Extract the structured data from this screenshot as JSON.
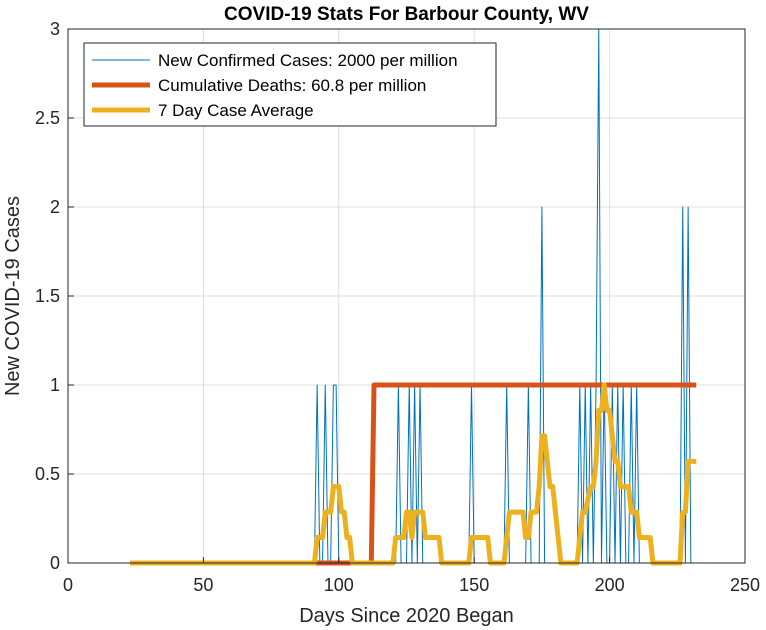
{
  "chart_data": {
    "type": "line",
    "title": "COVID-19 Stats For Barbour County, WV",
    "xlabel": "Days Since 2020 Began",
    "ylabel": "New COVID-19 Cases",
    "xlim": [
      0,
      250
    ],
    "ylim": [
      0,
      3
    ],
    "xticks": [
      0,
      50,
      100,
      150,
      200,
      250
    ],
    "yticks": [
      0,
      0.5,
      1,
      1.5,
      2,
      2.5,
      3
    ],
    "xtick_labels": [
      "0",
      "50",
      "100",
      "150",
      "200",
      "250"
    ],
    "ytick_labels": [
      "0",
      "0.5",
      "1",
      "1.5",
      "2",
      "2.5",
      "3"
    ],
    "grid": true,
    "legend_position": "top-left",
    "series": [
      {
        "name": "New Confirmed Cases: 2000 per million",
        "color": "#0072BD",
        "width": "thin",
        "x": [
          23,
          91,
          92,
          93,
          94,
          95,
          96,
          97,
          98,
          99,
          100,
          101,
          120,
          121,
          122,
          123,
          125,
          126,
          127,
          128,
          129,
          130,
          131,
          148,
          149,
          150,
          151,
          161,
          162,
          163,
          164,
          169,
          170,
          171,
          174,
          175,
          176,
          177,
          188,
          189,
          190,
          191,
          192,
          193,
          194,
          195,
          196,
          197,
          198,
          199,
          200,
          201,
          202,
          203,
          204,
          205,
          206,
          207,
          208,
          209,
          210,
          211,
          226,
          227,
          228,
          229,
          230,
          232
        ],
        "y": [
          0,
          0,
          1,
          0,
          0,
          1,
          0,
          0,
          1,
          1,
          0,
          0,
          0,
          0,
          1,
          0,
          0,
          1,
          0,
          1,
          0,
          1,
          0,
          0,
          1,
          0,
          0,
          0,
          1,
          0,
          0,
          0,
          1,
          0,
          0,
          2,
          0,
          0,
          0,
          1,
          0,
          1,
          0,
          1,
          0,
          1,
          3,
          0,
          1,
          0,
          0,
          1,
          0,
          1,
          0,
          1,
          0,
          0,
          1,
          0,
          1,
          0,
          0,
          2,
          0,
          2,
          0,
          0
        ]
      },
      {
        "name": "Cumulative Deaths: 60.8 per million",
        "color": "#D95319",
        "width": "thick",
        "x": [
          23,
          111,
          112,
          113,
          232
        ],
        "y": [
          0,
          0,
          0,
          1,
          1
        ]
      },
      {
        "name": "7 Day Case Average",
        "color": "#EDB120",
        "width": "thick",
        "x": [
          23,
          91,
          92,
          94,
          95,
          97,
          98,
          100,
          101,
          102,
          103,
          104,
          105,
          106,
          120,
          121,
          123,
          124,
          125,
          126,
          127,
          128,
          129,
          130,
          131,
          132,
          133,
          134,
          135,
          136,
          137,
          138,
          148,
          149,
          155,
          156,
          161,
          162,
          163,
          168,
          169,
          170,
          171,
          173,
          174,
          175,
          176,
          177,
          178,
          179,
          180,
          181,
          182,
          183,
          188,
          189,
          190,
          191,
          193,
          194,
          195,
          196,
          197,
          198,
          199,
          200,
          201,
          202,
          203,
          204,
          205,
          206,
          207,
          208,
          209,
          210,
          211,
          212,
          213,
          214,
          215,
          216,
          217,
          218,
          226,
          227,
          228,
          229,
          230,
          232
        ],
        "y": [
          0,
          0,
          0.143,
          0.143,
          0.286,
          0.286,
          0.429,
          0.429,
          0.286,
          0.286,
          0.143,
          0.143,
          0,
          0,
          0,
          0.143,
          0.143,
          0.143,
          0.286,
          0.286,
          0.143,
          0.286,
          0.286,
          0.286,
          0.286,
          0.143,
          0.143,
          0.143,
          0.143,
          0.143,
          0.143,
          0,
          0,
          0.143,
          0.143,
          0,
          0,
          0.143,
          0.286,
          0.286,
          0.143,
          0.143,
          0.286,
          0.286,
          0.429,
          0.714,
          0.714,
          0.571,
          0.429,
          0.429,
          0.286,
          0.143,
          0,
          0,
          0,
          0.143,
          0.286,
          0.286,
          0.429,
          0.429,
          0.571,
          0.857,
          0.857,
          1,
          0.857,
          0.857,
          0.714,
          0.571,
          0.571,
          0.429,
          0.429,
          0.429,
          0.429,
          0.286,
          0.286,
          0.286,
          0.143,
          0.143,
          0.143,
          0.143,
          0.143,
          0,
          0,
          0,
          0,
          0.286,
          0.286,
          0.571,
          0.571,
          0.571
        ]
      }
    ]
  }
}
